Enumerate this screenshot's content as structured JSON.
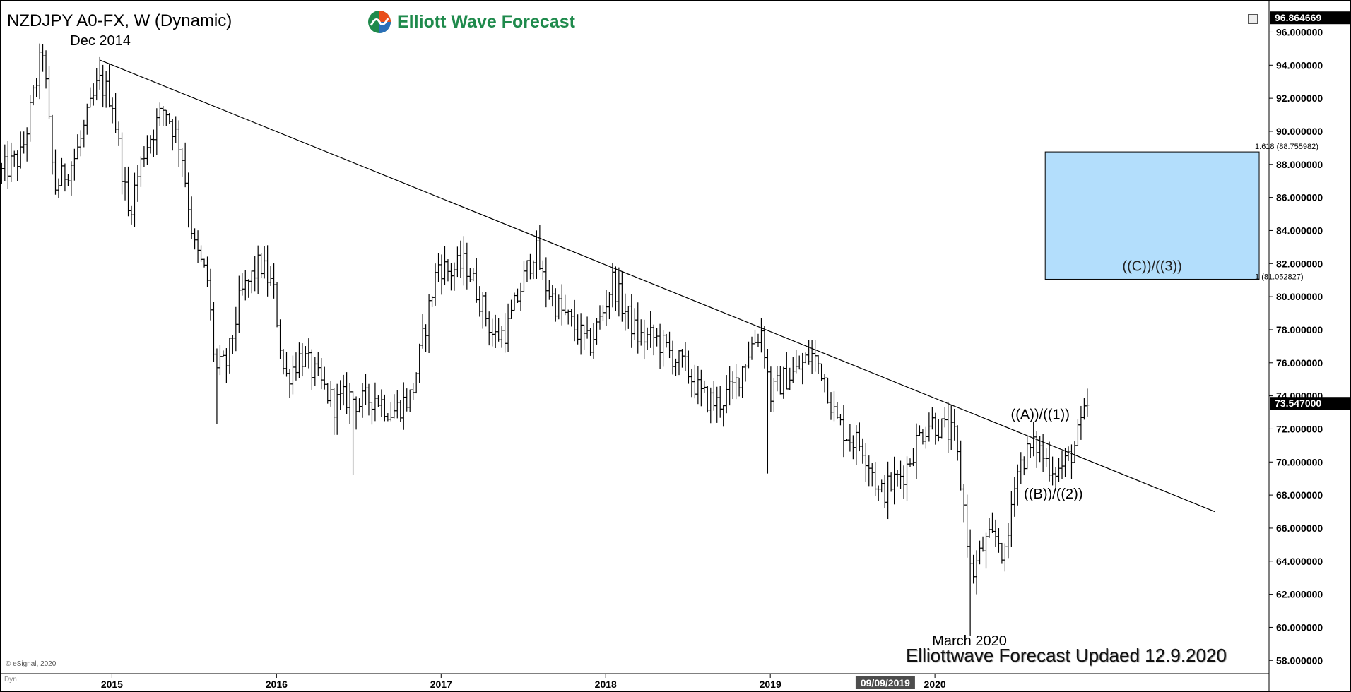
{
  "header": {
    "title": "NZDJPY A0-FX, W (Dynamic)",
    "logo_text": "Elliott Wave Forecast",
    "copyright": "© eSignal, 2020",
    "dyn_label": "Dyn",
    "footer_note": "Elliottwave Forecast Updaed 12.9.2020"
  },
  "colors": {
    "bars": "#000000",
    "trendline": "#000000",
    "target_box": "#b3defc",
    "target_border": "#000000",
    "logo_green": "#1f8a4c",
    "price_label_bg": "#000000",
    "date_label_bg": "#4d4d4d"
  },
  "chart_data": {
    "type": "ohlc",
    "timeframe": "Weekly",
    "symbol": "NZDJPY A0-FX",
    "ylim": [
      57.2,
      97.6
    ],
    "y_ticks": [
      58,
      60,
      62,
      64,
      66,
      68,
      70,
      72,
      74,
      76,
      78,
      80,
      82,
      84,
      86,
      88,
      90,
      92,
      94,
      96
    ],
    "y_tick_format": "6dp",
    "x_ticks": [
      "2015",
      "2016",
      "2017",
      "2018",
      "2019",
      "2020"
    ],
    "x_tick_positions_year": [
      2015.0,
      2016.0,
      2017.0,
      2018.0,
      2019.0,
      2020.0
    ],
    "x_range": [
      2014.32,
      2022.03
    ],
    "data_end": 2020.93,
    "current_price_label": "73.547000",
    "current_price": 73.547,
    "top_label": "96.864669",
    "top_value": 96.864669,
    "date_cursor_label": "09/09/2019",
    "date_cursor": 2019.69,
    "grid": false,
    "anchors": [
      [
        2014.33,
        87.5
      ],
      [
        2014.45,
        88.5
      ],
      [
        2014.58,
        95.0
      ],
      [
        2014.65,
        86.5
      ],
      [
        2014.78,
        88.5
      ],
      [
        2014.92,
        93.0
      ],
      [
        2015.0,
        92.0
      ],
      [
        2015.1,
        85.0
      ],
      [
        2015.2,
        89.0
      ],
      [
        2015.32,
        91.5
      ],
      [
        2015.42,
        89.0
      ],
      [
        2015.5,
        83.0
      ],
      [
        2015.58,
        81.0
      ],
      [
        2015.63,
        75.5
      ],
      [
        2015.7,
        76.0
      ],
      [
        2015.78,
        80.0
      ],
      [
        2015.9,
        82.0
      ],
      [
        2015.98,
        80.5
      ],
      [
        2016.05,
        75.0
      ],
      [
        2016.15,
        76.5
      ],
      [
        2016.25,
        75.0
      ],
      [
        2016.35,
        73.5
      ],
      [
        2016.45,
        74.0
      ],
      [
        2016.5,
        73.5
      ],
      [
        2016.6,
        74.0
      ],
      [
        2016.7,
        73.0
      ],
      [
        2016.82,
        74.0
      ],
      [
        2016.9,
        78.0
      ],
      [
        2016.98,
        82.0
      ],
      [
        2017.05,
        81.5
      ],
      [
        2017.15,
        82.0
      ],
      [
        2017.25,
        79.5
      ],
      [
        2017.32,
        77.5
      ],
      [
        2017.4,
        78.0
      ],
      [
        2017.5,
        81.0
      ],
      [
        2017.57,
        83.0
      ],
      [
        2017.62,
        81.0
      ],
      [
        2017.7,
        79.5
      ],
      [
        2017.82,
        78.0
      ],
      [
        2017.9,
        77.0
      ],
      [
        2017.98,
        79.0
      ],
      [
        2018.04,
        81.0
      ],
      [
        2018.1,
        79.5
      ],
      [
        2018.2,
        77.5
      ],
      [
        2018.3,
        77.5
      ],
      [
        2018.4,
        76.5
      ],
      [
        2018.5,
        75.5
      ],
      [
        2018.58,
        74.0
      ],
      [
        2018.68,
        73.5
      ],
      [
        2018.78,
        74.5
      ],
      [
        2018.88,
        77.0
      ],
      [
        2018.95,
        78.0
      ],
      [
        2019.0,
        74.0
      ],
      [
        2019.08,
        75.0
      ],
      [
        2019.16,
        75.5
      ],
      [
        2019.25,
        76.5
      ],
      [
        2019.32,
        75.5
      ],
      [
        2019.4,
        72.5
      ],
      [
        2019.48,
        71.5
      ],
      [
        2019.56,
        71.0
      ],
      [
        2019.62,
        69.5
      ],
      [
        2019.66,
        68.0
      ],
      [
        2019.72,
        68.5
      ],
      [
        2019.82,
        69.5
      ],
      [
        2019.9,
        71.5
      ],
      [
        2019.97,
        72.5
      ],
      [
        2020.05,
        72.0
      ],
      [
        2020.12,
        71.5
      ],
      [
        2020.18,
        67.0
      ],
      [
        2020.22,
        63.0
      ],
      [
        2020.3,
        65.0
      ],
      [
        2020.38,
        65.5
      ],
      [
        2020.43,
        64.0
      ],
      [
        2020.48,
        69.0
      ],
      [
        2020.55,
        70.5
      ],
      [
        2020.62,
        71.0
      ],
      [
        2020.68,
        70.0
      ],
      [
        2020.75,
        69.5
      ],
      [
        2020.8,
        70.0
      ],
      [
        2020.85,
        71.0
      ],
      [
        2020.9,
        72.5
      ],
      [
        2020.93,
        73.5
      ]
    ],
    "extremes": [
      {
        "x": 2014.93,
        "high": 94.1
      },
      {
        "x": 2015.63,
        "low": 72.3
      },
      {
        "x": 2016.46,
        "low": 69.2
      },
      {
        "x": 2018.99,
        "low": 69.3
      },
      {
        "x": 2020.21,
        "low": 59.5
      },
      {
        "x": 2020.92,
        "high": 73.9
      }
    ],
    "trendline": {
      "from": [
        2014.93,
        94.3
      ],
      "to": [
        2021.7,
        67.0
      ]
    },
    "target_zone": {
      "x_start": 2020.67,
      "x_end": 2021.97,
      "y_low": 81.052827,
      "y_high": 88.755982,
      "label": "((C))/((3))",
      "label_high": "1.618 (88.755982)",
      "label_low": "1 (81.052827)"
    },
    "annotations": [
      {
        "text": "Dec 2014",
        "x": 2014.93,
        "y": 95.2,
        "anchor": "middle"
      },
      {
        "text": "March 2020",
        "x": 2020.21,
        "y": 58.9,
        "anchor": "middle"
      },
      {
        "text": "((A))/((1))",
        "x": 2020.64,
        "y": 72.6,
        "anchor": "middle"
      },
      {
        "text": "((B))/((2))",
        "x": 2020.72,
        "y": 67.8,
        "anchor": "middle"
      }
    ]
  }
}
